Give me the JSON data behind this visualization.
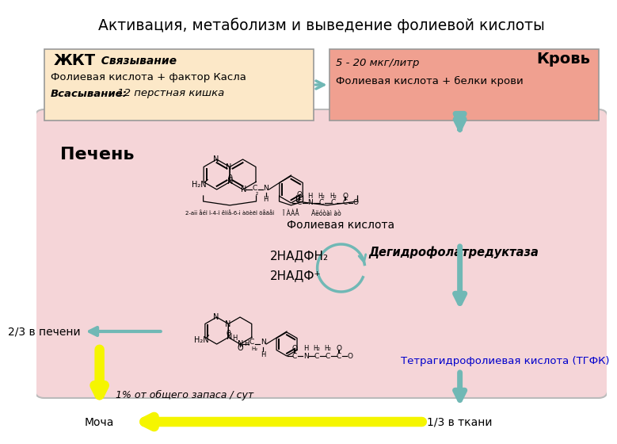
{
  "title": "Активация, метаболизм и выведение фолиевой кислоты",
  "bg_color": "#ffffff",
  "liver_box_color": "#f5d5d8",
  "gkt_box_color": "#fce8c8",
  "blood_box_color": "#f0a090",
  "arrow_teal": "#70b8b5",
  "arrow_yellow": "#f5f500",
  "gkt_title": "ЖКТ",
  "gkt_subtitle": "  Связывание",
  "gkt_line1": "Фолиевая кислота + фактор Касла",
  "gkt_bold": "Всасывание:",
  "gkt_italic": " 12 перстная кишка",
  "blood_title": "Кровь",
  "blood_line1": "5 - 20 мкг/литр",
  "blood_line2": "Фолиевая кислота + белки крови",
  "liver_label": "Печень",
  "enzyme": "Дегидрофолатредуктаза",
  "nadph2": "2НАДФН₂",
  "nadp_plus": "2НАДФ⁺",
  "folic_label": "Фолиевая кислота",
  "thf_label": "Тетрагидрофолиевая кислота (ТГФК)",
  "liver_part": "2/3 в печени",
  "tissue_part": "1/3 в ткани",
  "urine": "Моча",
  "percent": "1% от общего запаса / сут"
}
